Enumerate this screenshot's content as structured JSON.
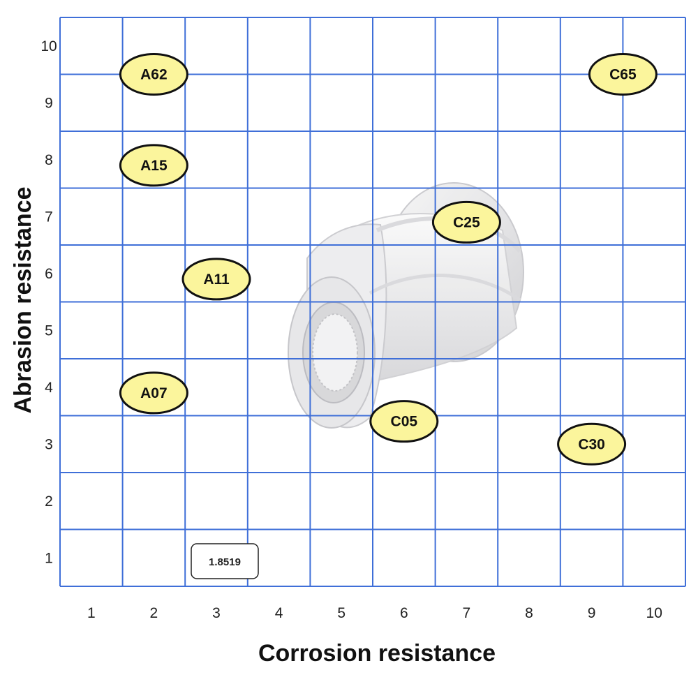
{
  "chart_data": {
    "type": "scatter",
    "xlabel": "Corrosion resistance",
    "ylabel": "Abrasion resistance",
    "xlim": [
      0.5,
      10.5
    ],
    "ylim": [
      0.5,
      10.5
    ],
    "x_ticks": [
      "1",
      "2",
      "3",
      "4",
      "5",
      "6",
      "7",
      "8",
      "9",
      "10"
    ],
    "y_ticks": [
      "1",
      "2",
      "3",
      "4",
      "5",
      "6",
      "7",
      "8",
      "9",
      "10"
    ],
    "grid": true,
    "points": [
      {
        "label": "A62",
        "x": 2.0,
        "y": 9.5
      },
      {
        "label": "C65",
        "x": 9.5,
        "y": 9.5
      },
      {
        "label": "A15",
        "x": 2.0,
        "y": 7.9
      },
      {
        "label": "C25",
        "x": 7.0,
        "y": 6.9
      },
      {
        "label": "A11",
        "x": 3.0,
        "y": 5.9
      },
      {
        "label": "A07",
        "x": 2.0,
        "y": 3.9
      },
      {
        "label": "C05",
        "x": 6.0,
        "y": 3.4
      },
      {
        "label": "C30",
        "x": 9.0,
        "y": 3.0
      }
    ],
    "point_fill": "#fbf59c",
    "point_stroke": "#111111",
    "grid_color": "#3f6fd8",
    "badge": "1.8519"
  }
}
